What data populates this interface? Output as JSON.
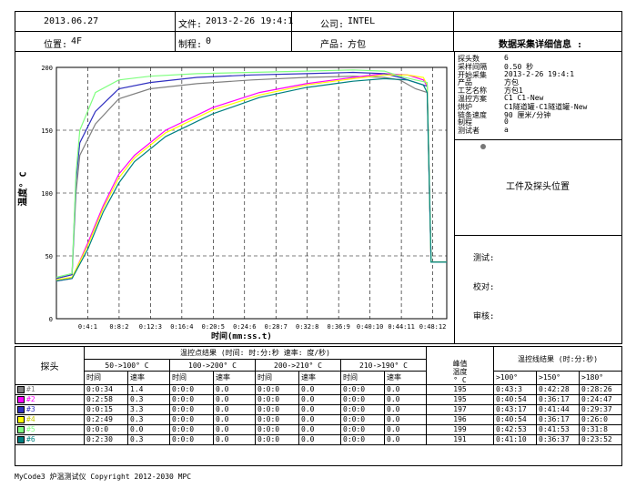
{
  "header": {
    "date": "2013.06.27",
    "file_label": "文件:",
    "file_value": "2013-2-26 19:4:1",
    "company_label": "公司:",
    "company_value": "INTEL",
    "location_label": "位置:",
    "location_value": "4F",
    "process_label": "制程:",
    "process_value": "0",
    "product_label": "产品:",
    "product_value": "方包",
    "details_title": "数据采集详细信息 :"
  },
  "info": {
    "rows": [
      {
        "k": "探头数",
        "v": "6"
      },
      {
        "k": "采样间隔",
        "v": "0.50 秒"
      },
      {
        "k": "开始采集",
        "v": "2013-2-26 19:4:1"
      },
      {
        "k": "产品",
        "v": "方包"
      },
      {
        "k": "工艺名称",
        "v": "方包1"
      },
      {
        "k": "温控方案",
        "v": "C1  C1-New"
      },
      {
        "k": "烘炉",
        "v": "C1隧道罐-C1隧道罐-New"
      },
      {
        "k": "链条速度",
        "v": "90 厘米/分钟"
      },
      {
        "k": "制程",
        "v": "0"
      },
      {
        "k": "测试者",
        "v": "a"
      }
    ],
    "position_title": "工件及探头位置",
    "test_label": "测试:",
    "check_label": "校对:",
    "audit_label": "审核:"
  },
  "results": {
    "title": "温控点结果",
    "units_note": "(时间:  时:分:秒   速率: 度/秒)",
    "probe_header": "探头",
    "ranges": [
      "50->100° C",
      "100->200° C",
      "200->210° C",
      "210->190° C"
    ],
    "time_label": "时间",
    "rate_label": "速率",
    "peak_label_1": "峰值",
    "peak_label_2": "温度",
    "peak_label_3": "° C",
    "line_title": "温控线结果 (时:分:秒)",
    "line_headers": [
      ">100°",
      ">150°",
      ">180°"
    ],
    "probes": [
      {
        "name": "#1",
        "color": "#808080",
        "cells": [
          "0:0:34",
          "1.4",
          "0:0:0",
          "0.0",
          "0:0:0",
          "0.0",
          "0:0:0",
          "0.0"
        ],
        "peak": "195",
        "lines": [
          "0:43:3",
          "0:42:28",
          "0:28:26"
        ]
      },
      {
        "name": "#2",
        "color": "#ff00ff",
        "cells": [
          "0:2:58",
          "0.3",
          "0:0:0",
          "0.0",
          "0:0:0",
          "0.0",
          "0:0:0",
          "0.0"
        ],
        "peak": "195",
        "lines": [
          "0:40:54",
          "0:36:17",
          "0:24:47"
        ]
      },
      {
        "name": "#3",
        "color": "#3030c0",
        "cells": [
          "0:0:15",
          "3.3",
          "0:0:0",
          "0.0",
          "0:0:0",
          "0.0",
          "0:0:0",
          "0.0"
        ],
        "peak": "197",
        "lines": [
          "0:43:17",
          "0:41:44",
          "0:29:37"
        ]
      },
      {
        "name": "#4",
        "color": "#ffff00",
        "cells": [
          "0:2:49",
          "0.3",
          "0:0:0",
          "0.0",
          "0:0:0",
          "0.0",
          "0:0:0",
          "0.0"
        ],
        "peak": "196",
        "lines": [
          "0:40:54",
          "0:36:17",
          "0:26:0"
        ]
      },
      {
        "name": "#5",
        "color": "#80ff80",
        "cells": [
          "0:0:0",
          "0.0",
          "0:0:0",
          "0.0",
          "0:0:0",
          "0.0",
          "0:0:0",
          "0.0"
        ],
        "peak": "199",
        "lines": [
          "0:42:53",
          "0:41:53",
          "0:31:8"
        ]
      },
      {
        "name": "#6",
        "color": "#008080",
        "cells": [
          "0:2:30",
          "0.3",
          "0:0:0",
          "0.0",
          "0:0:0",
          "0.0",
          "0:0:0",
          "0.0"
        ],
        "peak": "191",
        "lines": [
          "0:41:10",
          "0:36:37",
          "0:23:52"
        ]
      }
    ]
  },
  "footer": "MyCode3 炉温测试仪 Copyright 2012-2030 MPC",
  "chart_data": {
    "type": "line",
    "ylabel": "温度° C",
    "xlabel": "时间(mm:ss.t)",
    "ylim": [
      0,
      200
    ],
    "yticks": [
      "0",
      "50",
      "100",
      "150",
      "200"
    ],
    "xticks": [
      "0:4:1",
      "0:8:2",
      "0:12:3",
      "0:16:4",
      "0:20:5",
      "0:24:6",
      "0:28:7",
      "0:32:8",
      "0:36:9",
      "0:40:10",
      "0:44:11",
      "0:48:12"
    ],
    "xlim_minutes": [
      0,
      50
    ],
    "grid": true,
    "series": [
      {
        "color": "#808080",
        "x": [
          0,
          2,
          2.5,
          3,
          5,
          8,
          12,
          18,
          25,
          32,
          38,
          42,
          44,
          46,
          47.5,
          48,
          50
        ],
        "y": [
          32,
          35,
          100,
          130,
          155,
          175,
          183,
          187,
          190,
          192,
          193,
          192,
          190,
          183,
          180,
          45,
          45
        ]
      },
      {
        "color": "#ff00ff",
        "x": [
          0,
          2,
          4,
          6,
          8,
          10,
          14,
          20,
          26,
          32,
          38,
          42,
          45,
          47,
          47.5,
          48,
          50
        ],
        "y": [
          30,
          32,
          60,
          90,
          115,
          130,
          150,
          168,
          180,
          187,
          192,
          195,
          194,
          190,
          185,
          45,
          45
        ]
      },
      {
        "color": "#3030c0",
        "x": [
          0,
          2,
          2.5,
          3,
          5,
          8,
          12,
          18,
          25,
          32,
          38,
          42,
          44,
          46,
          47.5,
          48,
          50
        ],
        "y": [
          32,
          35,
          110,
          140,
          165,
          183,
          188,
          192,
          194,
          195,
          196,
          195,
          192,
          188,
          185,
          45,
          45
        ]
      },
      {
        "color": "#ffff00",
        "x": [
          0,
          2,
          4,
          6,
          8,
          10,
          14,
          20,
          26,
          32,
          38,
          42,
          45,
          47,
          47.5,
          48,
          50
        ],
        "y": [
          31,
          33,
          58,
          88,
          112,
          128,
          148,
          166,
          178,
          186,
          191,
          194,
          194,
          192,
          186,
          45,
          45
        ]
      },
      {
        "color": "#80ff80",
        "x": [
          0,
          2,
          2.5,
          3,
          5,
          8,
          12,
          18,
          25,
          32,
          38,
          42,
          44,
          46,
          47.5,
          48,
          50
        ],
        "y": [
          33,
          36,
          115,
          150,
          180,
          190,
          193,
          195,
          196,
          197,
          198,
          197,
          193,
          190,
          188,
          45,
          45
        ]
      },
      {
        "color": "#008080",
        "x": [
          0,
          2,
          4,
          6,
          8,
          10,
          14,
          20,
          26,
          32,
          38,
          42,
          45,
          47,
          47.5,
          48,
          50
        ],
        "y": [
          30,
          32,
          55,
          85,
          108,
          125,
          145,
          163,
          176,
          184,
          189,
          191,
          190,
          186,
          180,
          45,
          45
        ]
      }
    ]
  }
}
